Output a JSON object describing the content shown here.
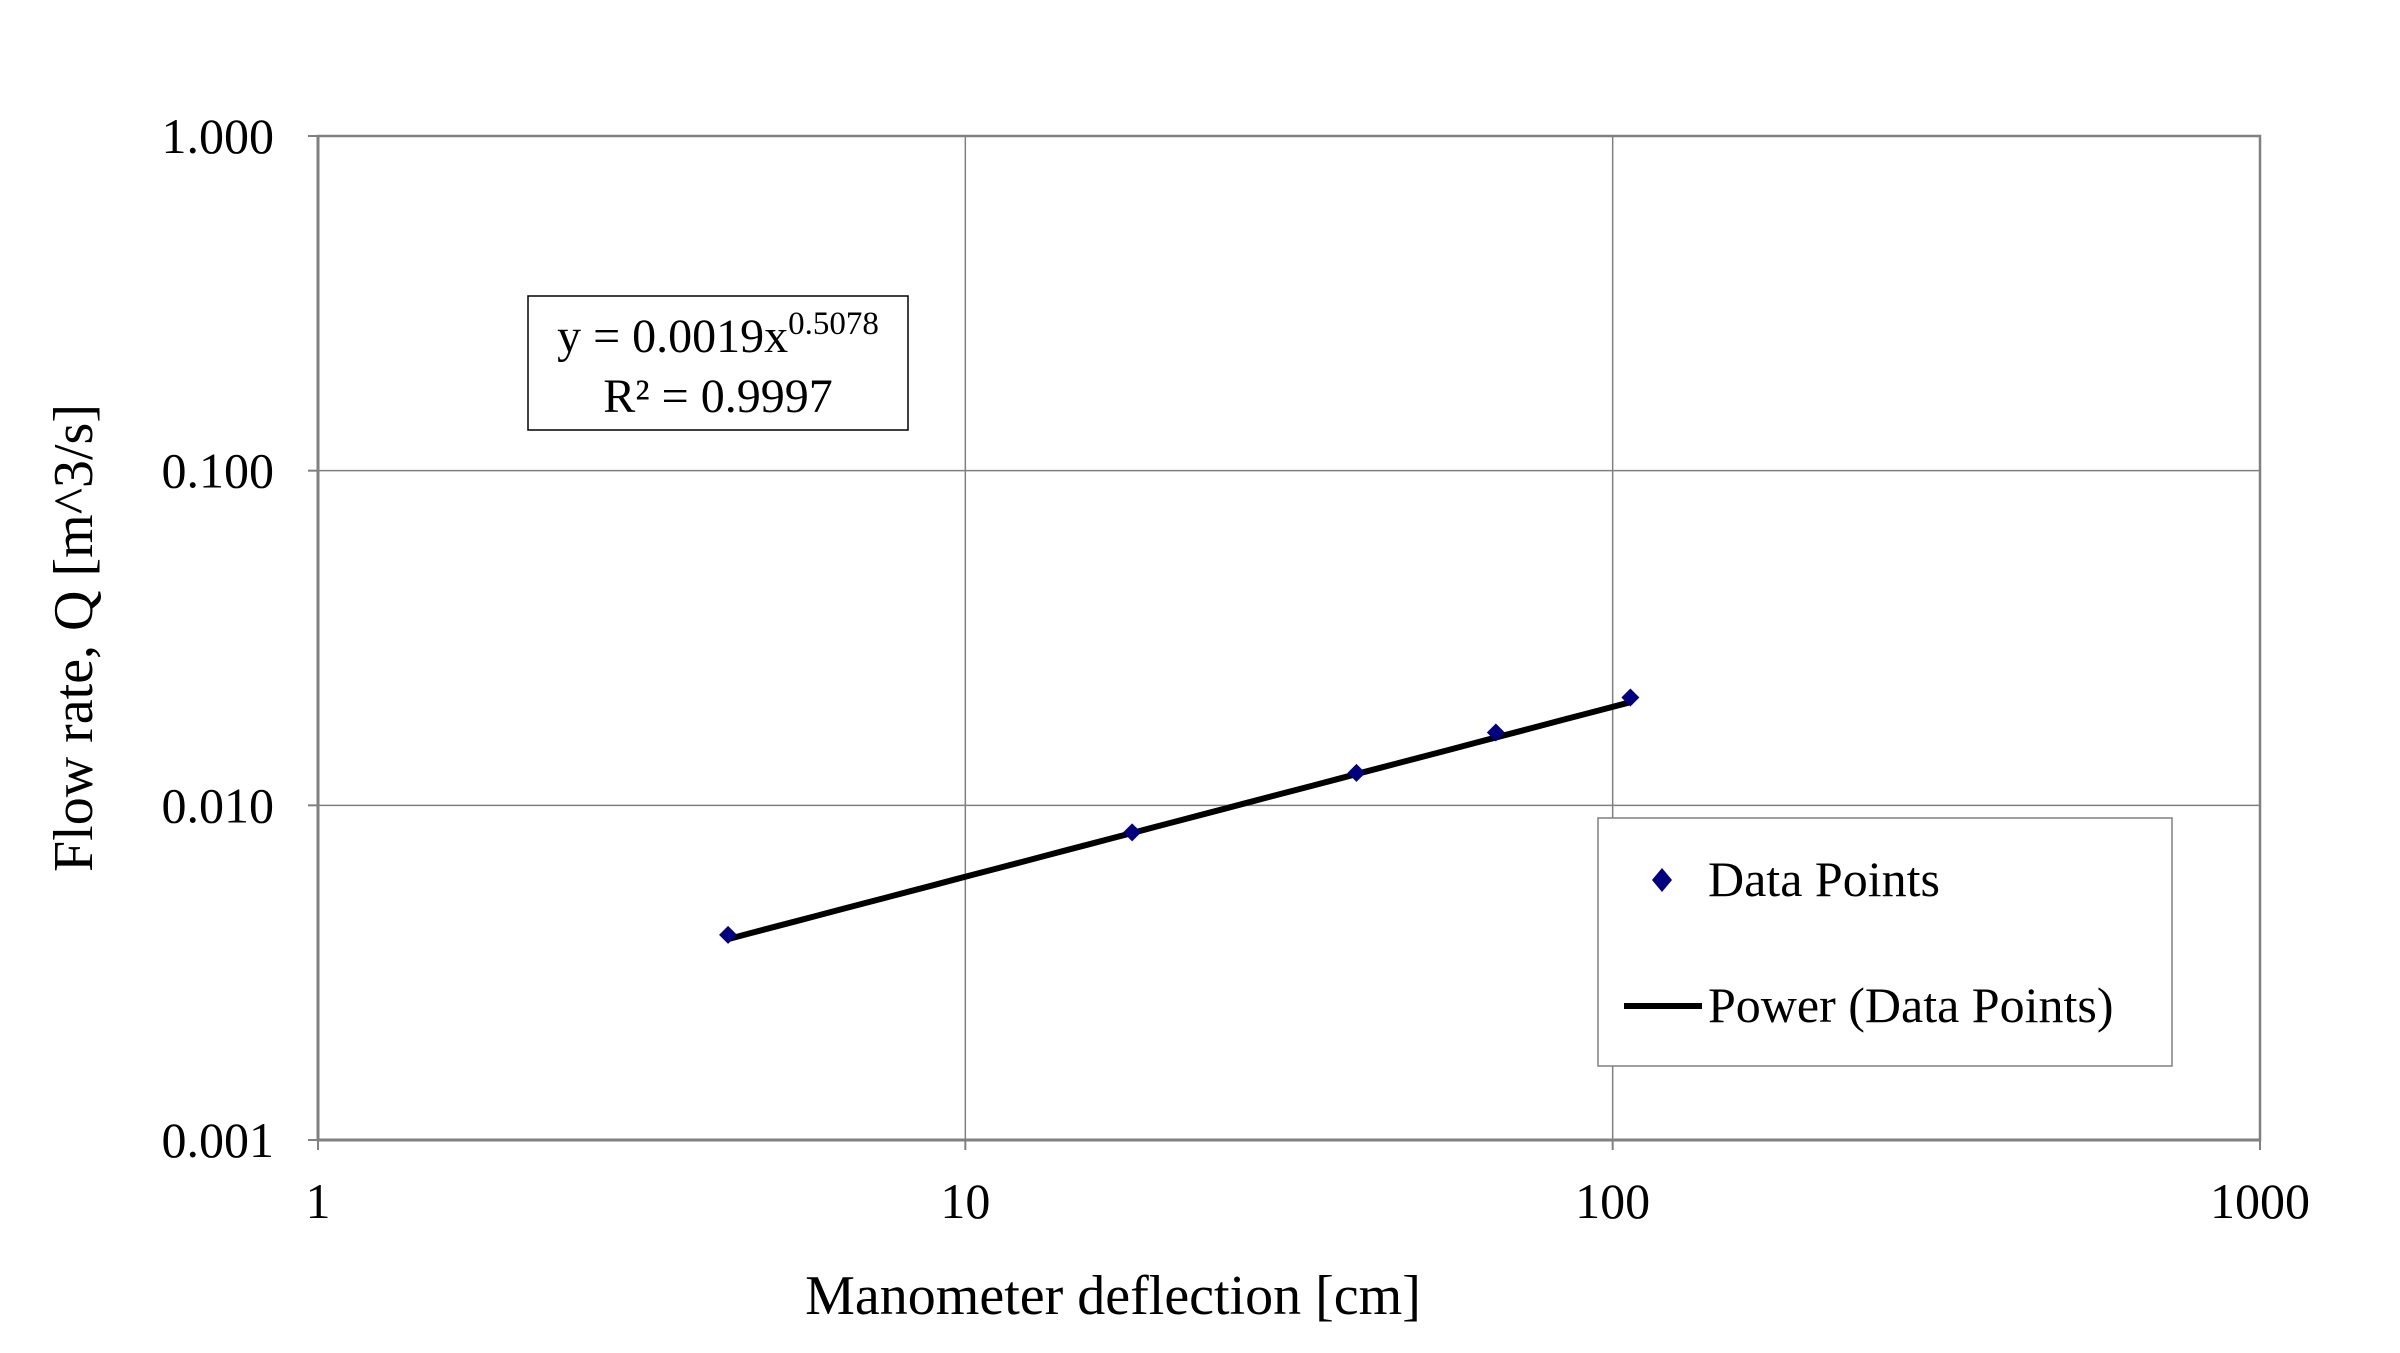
{
  "chart_data": {
    "type": "scatter",
    "title": "",
    "xlabel": "Manometer deflection [cm]",
    "ylabel": "Flow rate, Q [m^3/s]",
    "x_scale": "log",
    "y_scale": "log",
    "xlim": [
      1,
      1000
    ],
    "ylim": [
      0.001,
      1
    ],
    "x_ticks": [
      {
        "value": 1,
        "label": "1"
      },
      {
        "value": 10,
        "label": "10"
      },
      {
        "value": 100,
        "label": "100"
      },
      {
        "value": 1000,
        "label": "1000"
      }
    ],
    "y_ticks": [
      {
        "value": 0.001,
        "label": "0.001"
      },
      {
        "value": 0.01,
        "label": "0.010"
      },
      {
        "value": 0.1,
        "label": "0.100"
      },
      {
        "value": 1,
        "label": "1.000"
      }
    ],
    "grid": true,
    "series": [
      {
        "name": "Data Points",
        "kind": "scatter",
        "marker": "diamond",
        "color": "#000080",
        "x": [
          4.3,
          18.1,
          40.2,
          66.0,
          106.5
        ],
        "y": [
          0.0041,
          0.0083,
          0.0125,
          0.0165,
          0.021
        ]
      },
      {
        "name": "Power (Data Points)",
        "kind": "line",
        "color": "#000000",
        "fit": {
          "a": 0.0019,
          "b": 0.5078
        },
        "x_range": [
          4.3,
          106.5
        ]
      }
    ],
    "annotation": {
      "line1_prefix": "y = 0.0019x",
      "line1_exponent": "0.5078",
      "line2": "R² = 0.9997"
    },
    "legend": {
      "position": "bottom-right",
      "entries": [
        "Data Points",
        "Power (Data Points)"
      ]
    }
  }
}
